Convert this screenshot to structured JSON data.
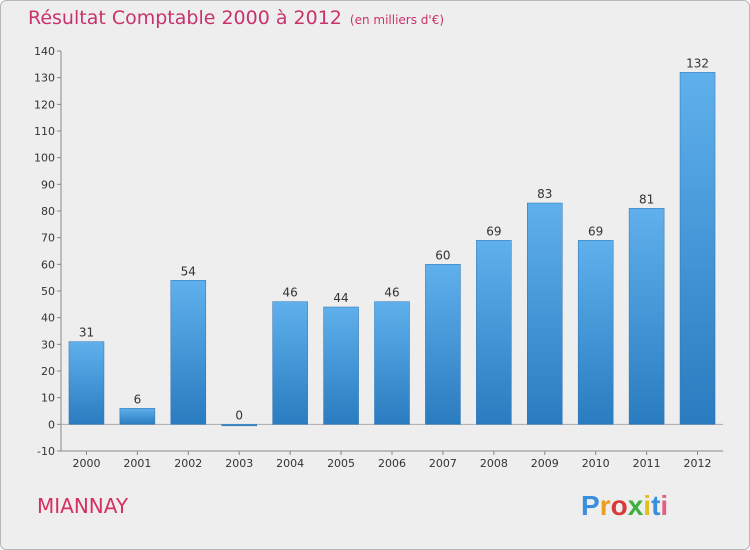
{
  "title": "Résultat Comptable 2000 à 2012",
  "unit": "(en milliers d'€)",
  "place": "MIANNAY",
  "logo": {
    "text": "Proxiti",
    "colors": [
      "#3a8ee0",
      "#e8a020",
      "#d63a3a",
      "#3db040",
      "#e0c020",
      "#3a8ee0",
      "#e06080"
    ]
  },
  "colors": {
    "bar_light": "#5fb0ec",
    "bar_dark": "#2a7cc0",
    "title": "#c8336b"
  },
  "chart_data": {
    "type": "bar",
    "title": "Résultat Comptable 2000 à 2012",
    "xlabel": "",
    "ylabel": "",
    "ylim": [
      -10,
      140
    ],
    "yticks": [
      -10,
      0,
      10,
      20,
      30,
      40,
      50,
      60,
      70,
      80,
      90,
      100,
      110,
      120,
      130,
      140
    ],
    "categories": [
      "2000",
      "2001",
      "2002",
      "2003",
      "2004",
      "2005",
      "2006",
      "2007",
      "2008",
      "2009",
      "2010",
      "2011",
      "2012"
    ],
    "values": [
      31,
      6,
      54,
      0,
      46,
      44,
      46,
      60,
      69,
      83,
      69,
      81,
      132
    ],
    "grid": false
  }
}
